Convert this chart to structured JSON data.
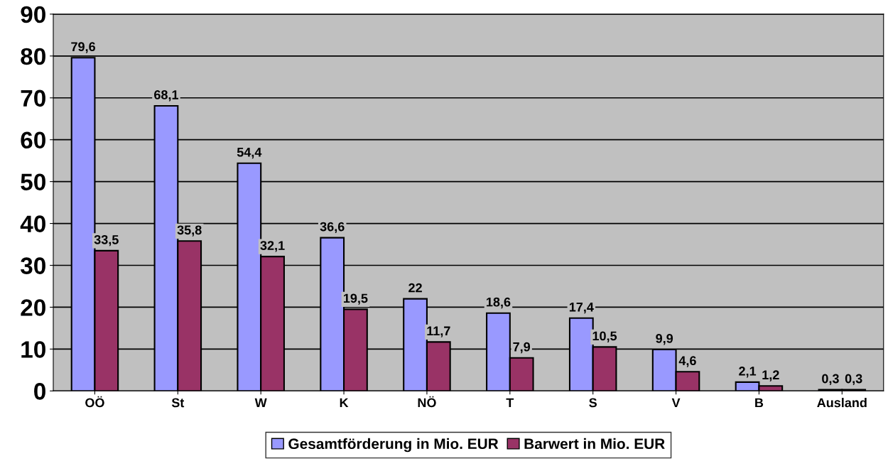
{
  "chart_data": {
    "type": "bar",
    "categories": [
      "OÖ",
      "St",
      "W",
      "K",
      "NÖ",
      "T",
      "S",
      "V",
      "B",
      "Ausland"
    ],
    "series": [
      {
        "name": "Gesamtförderung in Mio. EUR",
        "color": "#9999ff",
        "values": [
          79.6,
          68.1,
          54.4,
          36.6,
          22,
          18.6,
          17.4,
          9.9,
          2.1,
          0.3
        ],
        "value_labels": [
          "79,6",
          "68,1",
          "54,4",
          "36,6",
          "22",
          "18,6",
          "17,4",
          "9,9",
          "2,1",
          "0,3"
        ]
      },
      {
        "name": "Barwert in Mio. EUR",
        "color": "#993366",
        "values": [
          33.5,
          35.8,
          32.1,
          19.5,
          11.7,
          7.9,
          10.5,
          4.6,
          1.2,
          0.3
        ],
        "value_labels": [
          "33,5",
          "35,8",
          "32,1",
          "19,5",
          "11,7",
          "7,9",
          "10,5",
          "4,6",
          "1,2",
          "0,3"
        ]
      }
    ],
    "ylim": [
      0,
      90
    ],
    "yticks": [
      0,
      10,
      20,
      30,
      40,
      50,
      60,
      70,
      80,
      90
    ],
    "grid": "y",
    "legend": "bottom"
  }
}
